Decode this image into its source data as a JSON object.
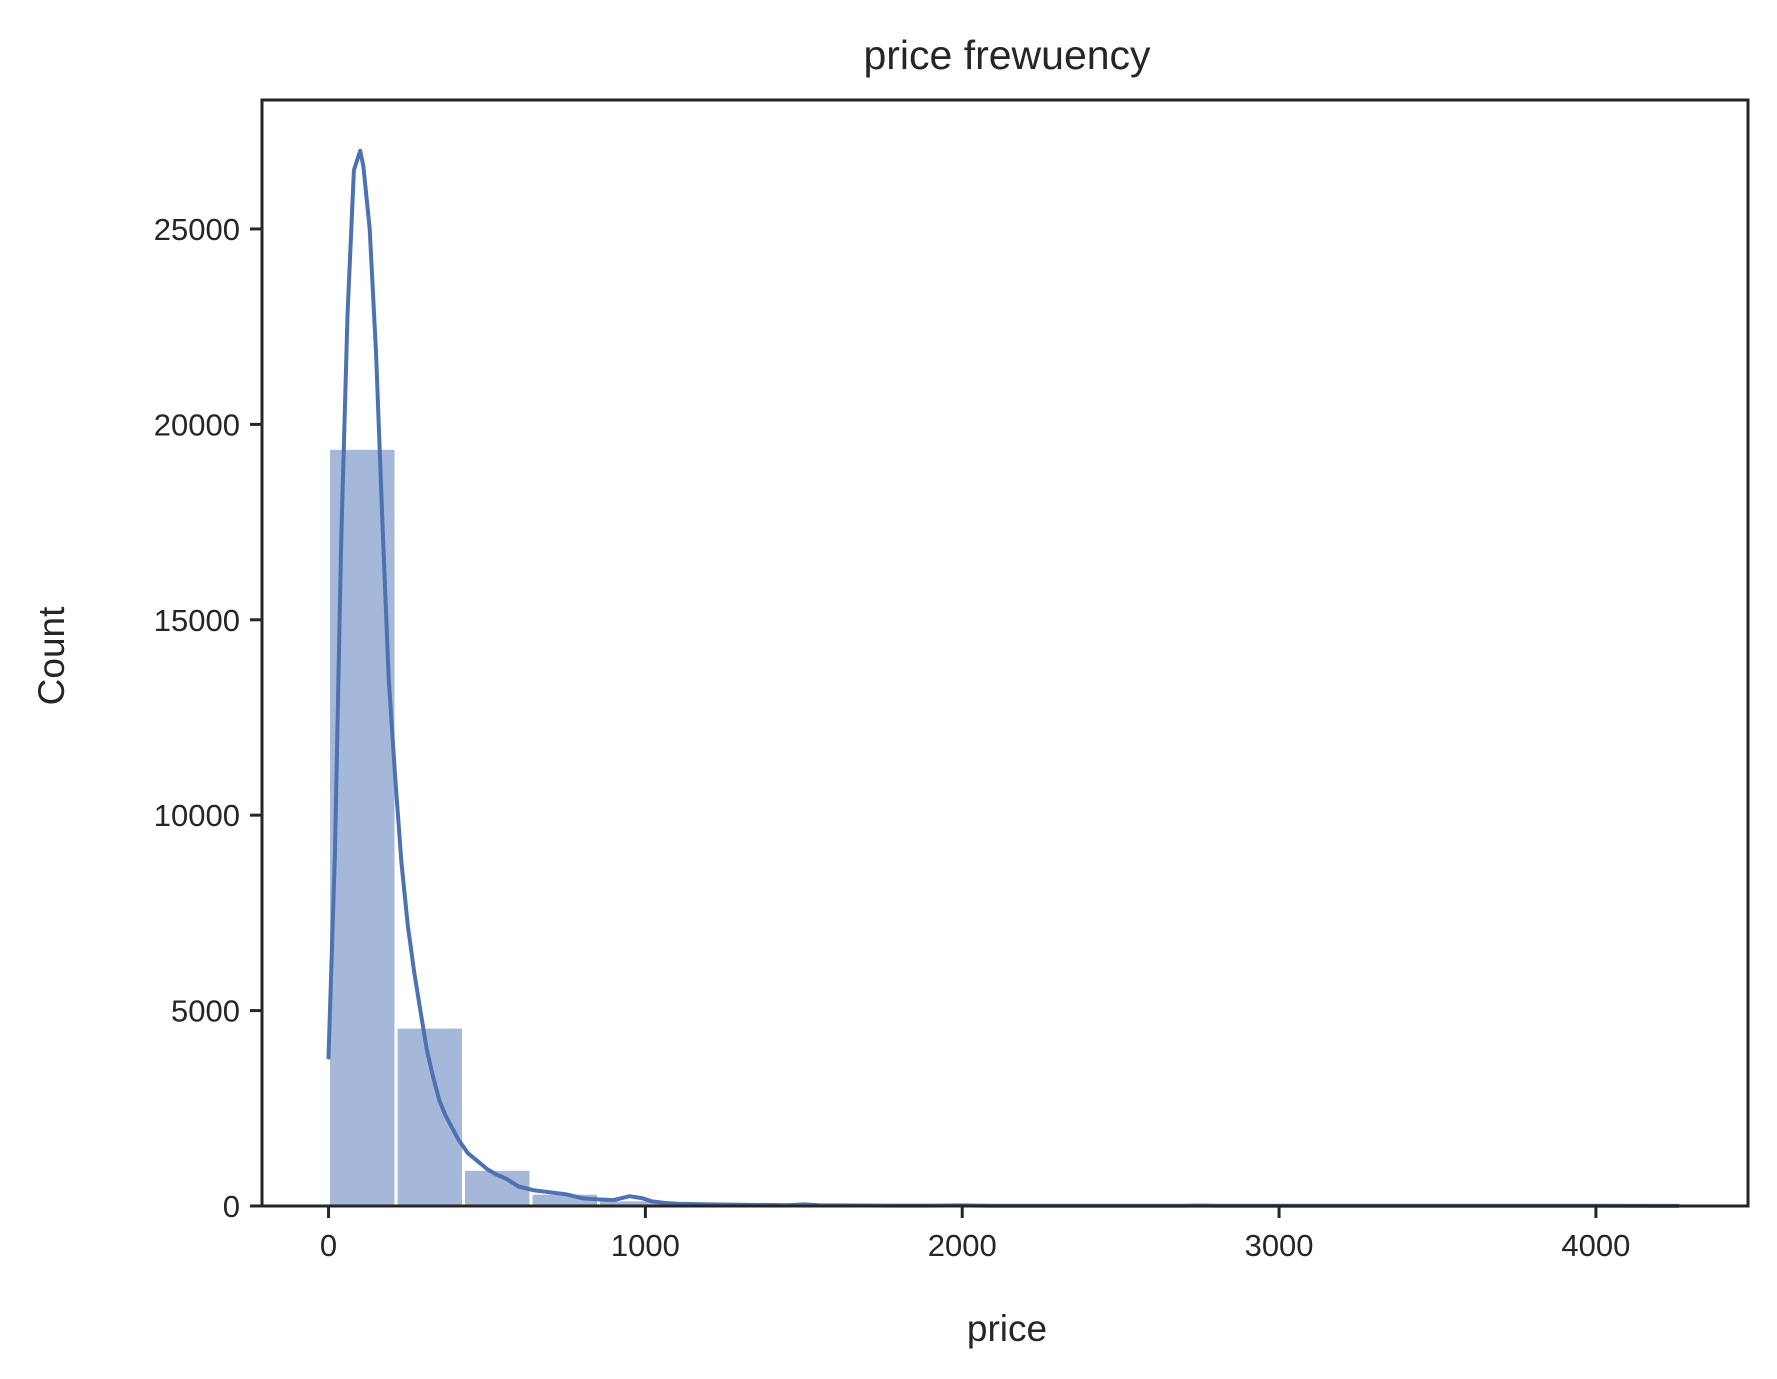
{
  "chart_data": {
    "type": "bar",
    "title": "price frewuency",
    "xlabel": "price",
    "ylabel": "Count",
    "xlim": [
      -210,
      4480
    ],
    "ylim": [
      0,
      28300
    ],
    "xticks": [
      0,
      1000,
      2000,
      3000,
      4000
    ],
    "xtick_labels": [
      "0",
      "1000",
      "2000",
      "3000",
      "4000"
    ],
    "yticks": [
      0,
      5000,
      10000,
      15000,
      20000,
      25000
    ],
    "ytick_labels": [
      "0",
      "5000",
      "10000",
      "15000",
      "20000",
      "25000"
    ],
    "grid": false,
    "bins": [
      {
        "x0": 0,
        "x1": 213,
        "count": 19350
      },
      {
        "x0": 213,
        "x1": 426,
        "count": 4540
      },
      {
        "x0": 426,
        "x1": 639,
        "count": 900
      },
      {
        "x0": 639,
        "x1": 852,
        "count": 290
      },
      {
        "x0": 852,
        "x1": 1065,
        "count": 120
      },
      {
        "x0": 1065,
        "x1": 1278,
        "count": 50
      },
      {
        "x0": 1278,
        "x1": 1491,
        "count": 30
      },
      {
        "x0": 1491,
        "x1": 1704,
        "count": 20
      },
      {
        "x0": 1704,
        "x1": 1917,
        "count": 10
      },
      {
        "x0": 1917,
        "x1": 2130,
        "count": 15
      },
      {
        "x0": 2130,
        "x1": 2343,
        "count": 8
      },
      {
        "x0": 2343,
        "x1": 2556,
        "count": 5
      },
      {
        "x0": 2556,
        "x1": 2769,
        "count": 5
      },
      {
        "x0": 2769,
        "x1": 2982,
        "count": 5
      },
      {
        "x0": 2982,
        "x1": 3195,
        "count": 4
      },
      {
        "x0": 3195,
        "x1": 3408,
        "count": 4
      },
      {
        "x0": 3408,
        "x1": 3621,
        "count": 3
      },
      {
        "x0": 3621,
        "x1": 3834,
        "count": 3
      },
      {
        "x0": 3834,
        "x1": 4047,
        "count": 3
      },
      {
        "x0": 4047,
        "x1": 4260,
        "count": 2
      }
    ],
    "kde": {
      "x": [
        0,
        20,
        40,
        60,
        80,
        100,
        110,
        130,
        150,
        170,
        190,
        210,
        230,
        250,
        270,
        290,
        310,
        330,
        350,
        370,
        390,
        410,
        440,
        470,
        500,
        530,
        560,
        600,
        650,
        700,
        750,
        800,
        850,
        900,
        950,
        990,
        1020,
        1060,
        1100,
        1200,
        1300,
        1400,
        1450,
        1500,
        1550,
        1600,
        1700,
        1800,
        1900,
        2000,
        2050,
        2100,
        2200,
        2300,
        2500,
        2700,
        2750,
        2800,
        3000,
        3200,
        3400,
        3600,
        3800,
        4000,
        4260
      ],
      "y": [
        3800,
        9000,
        17000,
        22800,
        26500,
        27000,
        26600,
        25000,
        21800,
        17500,
        13500,
        11000,
        8800,
        7200,
        6000,
        5000,
        4000,
        3300,
        2700,
        2300,
        2000,
        1700,
        1350,
        1150,
        950,
        800,
        700,
        500,
        400,
        350,
        300,
        200,
        170,
        150,
        250,
        200,
        120,
        80,
        60,
        40,
        30,
        25,
        20,
        40,
        20,
        15,
        12,
        10,
        10,
        15,
        10,
        8,
        8,
        6,
        6,
        6,
        12,
        5,
        5,
        6,
        4,
        4,
        4,
        4,
        3
      ]
    },
    "colors": {
      "bar": "#a5b8d9",
      "line": "#4c72b0",
      "axes": "#262626"
    }
  }
}
